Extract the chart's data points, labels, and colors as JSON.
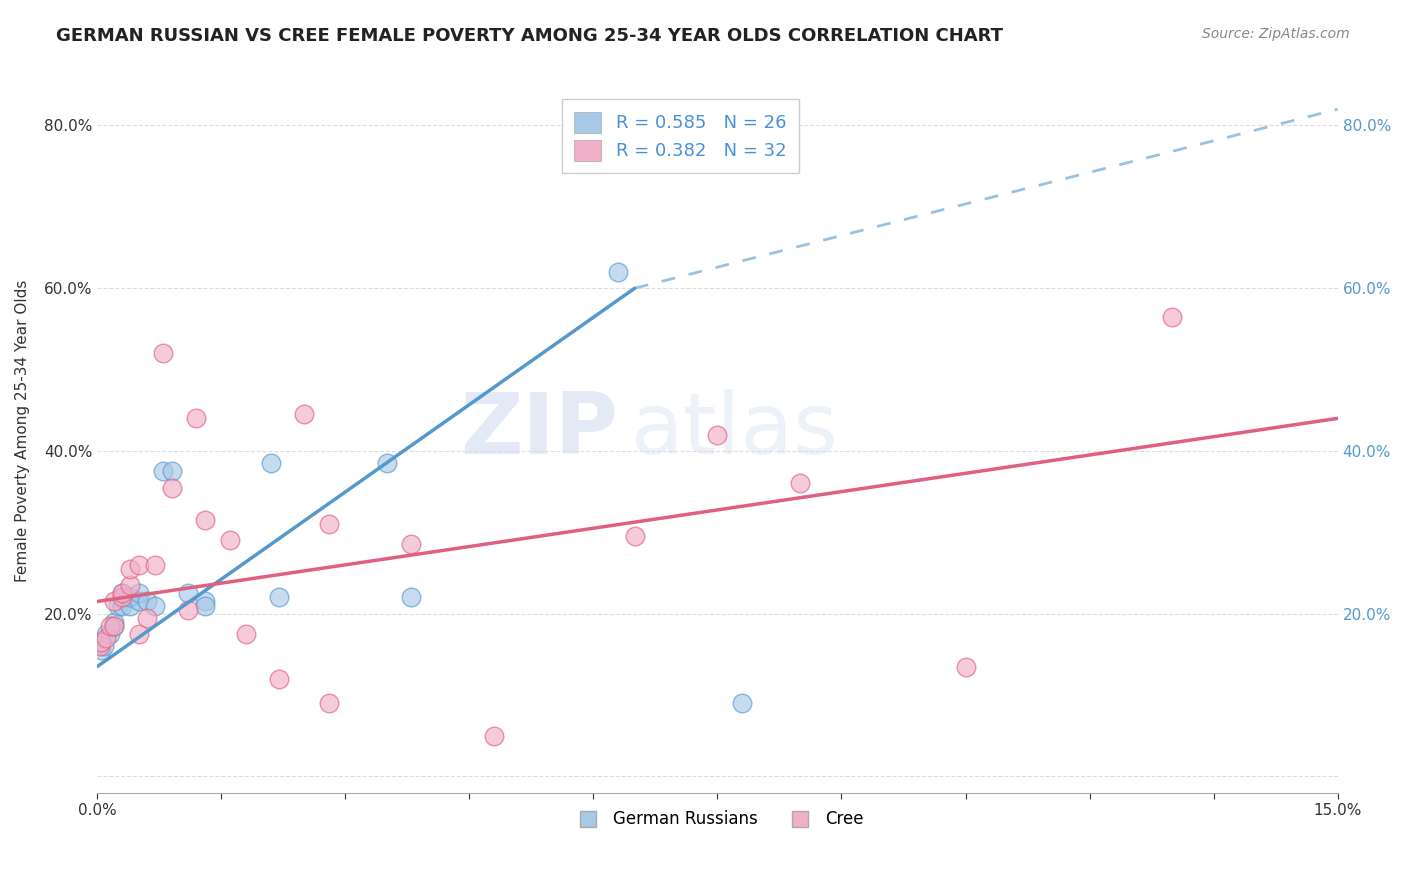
{
  "title": "GERMAN RUSSIAN VS CREE FEMALE POVERTY AMONG 25-34 YEAR OLDS CORRELATION CHART",
  "source": "Source: ZipAtlas.com",
  "ylabel": "Female Poverty Among 25-34 Year Olds",
  "xlabel": "",
  "xlim": [
    0.0,
    0.15
  ],
  "ylim": [
    -0.02,
    0.87
  ],
  "background_color": "#ffffff",
  "watermark_zip": "ZIP",
  "watermark_atlas": "atlas",
  "german_russian": {
    "color": "#a8c8e8",
    "line_color": "#5599cc",
    "R": 0.585,
    "N": 26,
    "x": [
      0.0005,
      0.0008,
      0.001,
      0.0015,
      0.002,
      0.002,
      0.0025,
      0.003,
      0.003,
      0.004,
      0.004,
      0.005,
      0.005,
      0.006,
      0.007,
      0.008,
      0.009,
      0.011,
      0.013,
      0.013,
      0.021,
      0.022,
      0.035,
      0.038,
      0.063,
      0.078
    ],
    "y": [
      0.155,
      0.16,
      0.175,
      0.175,
      0.185,
      0.19,
      0.21,
      0.21,
      0.225,
      0.21,
      0.22,
      0.215,
      0.225,
      0.215,
      0.21,
      0.375,
      0.375,
      0.225,
      0.215,
      0.21,
      0.385,
      0.22,
      0.385,
      0.22,
      0.62,
      0.09
    ]
  },
  "cree": {
    "color": "#f0b0c8",
    "line_color": "#e06080",
    "R": 0.382,
    "N": 32,
    "x": [
      0.0003,
      0.0005,
      0.001,
      0.0015,
      0.002,
      0.002,
      0.003,
      0.003,
      0.004,
      0.004,
      0.005,
      0.005,
      0.006,
      0.007,
      0.008,
      0.009,
      0.011,
      0.012,
      0.013,
      0.016,
      0.018,
      0.022,
      0.025,
      0.028,
      0.028,
      0.038,
      0.048,
      0.065,
      0.075,
      0.085,
      0.105,
      0.13
    ],
    "y": [
      0.16,
      0.165,
      0.17,
      0.185,
      0.185,
      0.215,
      0.22,
      0.225,
      0.235,
      0.255,
      0.26,
      0.175,
      0.195,
      0.26,
      0.52,
      0.355,
      0.205,
      0.44,
      0.315,
      0.29,
      0.175,
      0.12,
      0.445,
      0.31,
      0.09,
      0.285,
      0.05,
      0.295,
      0.42,
      0.36,
      0.135,
      0.565
    ]
  },
  "gr_line": {
    "x0": 0.0,
    "y0": 0.135,
    "x1": 0.065,
    "y1": 0.6,
    "dash_x0": 0.065,
    "dash_y0": 0.6,
    "dash_x1": 0.15,
    "dash_y1": 0.82
  },
  "cree_line": {
    "x0": 0.0,
    "y0": 0.215,
    "x1": 0.15,
    "y1": 0.44
  }
}
